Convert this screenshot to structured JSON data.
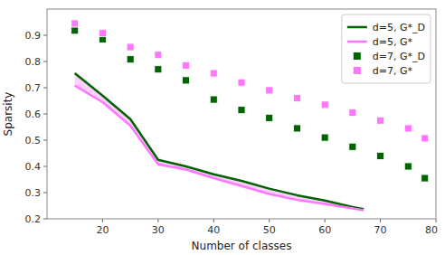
{
  "chart_data": {
    "type": "line",
    "title": "",
    "xlabel": "Number of classes",
    "ylabel": "Sparsity",
    "xlim": [
      10,
      80
    ],
    "ylim": [
      0.2,
      1.0
    ],
    "xticks": [
      20,
      30,
      40,
      50,
      60,
      70,
      80
    ],
    "yticks": [
      0.2,
      0.3,
      0.4,
      0.5,
      0.6,
      0.7,
      0.8,
      0.9
    ],
    "legend": "upper right",
    "series": [
      {
        "name": "d=5, G*_D",
        "type": "line",
        "color": "#006400",
        "x": [
          15,
          20,
          25,
          30,
          35,
          40,
          45,
          50,
          55,
          60,
          65,
          67
        ],
        "values": [
          0.755,
          0.67,
          0.58,
          0.425,
          0.4,
          0.37,
          0.345,
          0.315,
          0.29,
          0.27,
          0.245,
          0.237
        ]
      },
      {
        "name": "d=5, G*",
        "type": "line",
        "color": "#ff77ff",
        "x": [
          15,
          20,
          25,
          30,
          35,
          40,
          45,
          50,
          55,
          60,
          65,
          67
        ],
        "values": [
          0.708,
          0.645,
          0.555,
          0.408,
          0.388,
          0.355,
          0.325,
          0.295,
          0.272,
          0.257,
          0.24,
          0.233
        ]
      },
      {
        "name": "d=7, G*_D",
        "type": "scatter",
        "marker": "square",
        "color": "#006400",
        "x": [
          15,
          20,
          25,
          30,
          35,
          40,
          45,
          50,
          55,
          60,
          65,
          70,
          75,
          78
        ],
        "values": [
          0.918,
          0.885,
          0.808,
          0.77,
          0.728,
          0.655,
          0.615,
          0.585,
          0.545,
          0.51,
          0.475,
          0.44,
          0.4,
          0.355
        ]
      },
      {
        "name": "d=7, G*",
        "type": "scatter",
        "marker": "square",
        "color": "#ff77ff",
        "x": [
          15,
          20,
          25,
          30,
          35,
          40,
          45,
          50,
          55,
          60,
          65,
          70,
          75,
          78
        ],
        "values": [
          0.945,
          0.908,
          0.855,
          0.825,
          0.785,
          0.755,
          0.72,
          0.69,
          0.66,
          0.635,
          0.605,
          0.575,
          0.545,
          0.507
        ]
      }
    ]
  }
}
